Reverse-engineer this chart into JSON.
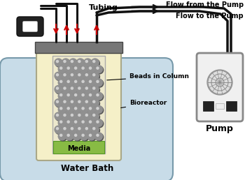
{
  "bg_color": "#ffffff",
  "water_bath_color": "#c8dce8",
  "bioreactor_body_color": "#f5f0c8",
  "bioreactor_border_color": "#888866",
  "lid_color": "#888888",
  "beads_color": "#888888",
  "media_color": "#88bb44",
  "pump_body_color": "#f0f0f0",
  "pump_border_color": "#888888",
  "tube_color": "#111111",
  "arrow_color": "#cc0000",
  "label_color": "#000000",
  "labels": {
    "tubing": "Tubing",
    "flow_from": "Flow from the Pump",
    "flow_to": "Flow to the Pump",
    "beads": "Beads in Column",
    "bioreactor": "Bioreactor",
    "water_bath": "Water Bath",
    "media": "Media",
    "pump": "Pump"
  }
}
